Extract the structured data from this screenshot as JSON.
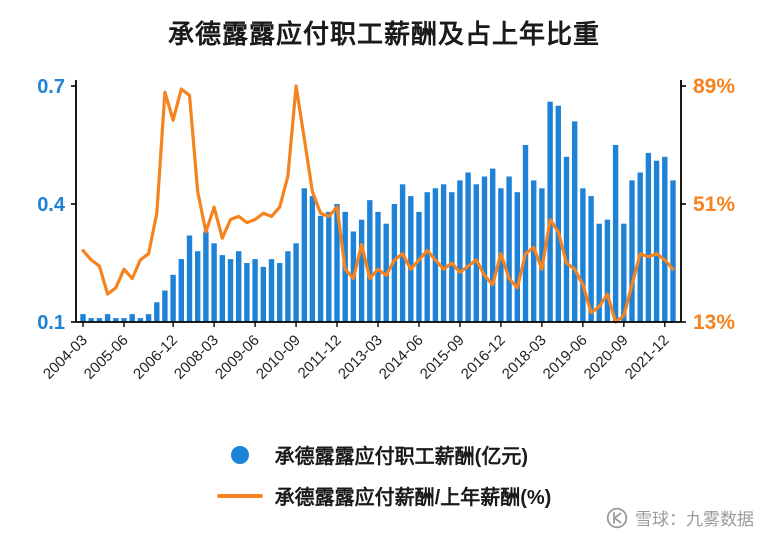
{
  "chart_data": {
    "type": "combo",
    "title": "承德露露应付职工薪酬及占上年比重",
    "x": [
      "2004-03",
      "2004-06",
      "2004-09",
      "2004-12",
      "2005-03",
      "2005-06",
      "2005-09",
      "2005-12",
      "2006-03",
      "2006-06",
      "2006-09",
      "2006-12",
      "2007-03",
      "2007-06",
      "2007-09",
      "2007-12",
      "2008-03",
      "2008-06",
      "2008-09",
      "2008-12",
      "2009-03",
      "2009-06",
      "2009-09",
      "2009-12",
      "2010-03",
      "2010-06",
      "2010-09",
      "2010-12",
      "2011-03",
      "2011-06",
      "2011-09",
      "2011-12",
      "2012-03",
      "2012-06",
      "2012-09",
      "2012-12",
      "2013-03",
      "2013-06",
      "2013-09",
      "2013-12",
      "2014-03",
      "2014-06",
      "2014-09",
      "2014-12",
      "2015-03",
      "2015-06",
      "2015-09",
      "2015-12",
      "2016-03",
      "2016-06",
      "2016-09",
      "2016-12",
      "2017-03",
      "2017-06",
      "2017-09",
      "2017-12",
      "2018-03",
      "2018-06",
      "2018-09",
      "2018-12",
      "2019-03",
      "2019-06",
      "2019-09",
      "2019-12",
      "2020-03",
      "2020-06",
      "2020-09",
      "2020-12",
      "2021-03",
      "2021-06",
      "2021-09",
      "2021-12",
      "2022-03"
    ],
    "x_ticks": [
      "2004-03",
      "2005-06",
      "2006-12",
      "2008-03",
      "2009-06",
      "2010-09",
      "2011-12",
      "2013-03",
      "2014-06",
      "2015-09",
      "2016-12",
      "2018-03",
      "2019-06",
      "2020-09",
      "2021-12"
    ],
    "series": [
      {
        "name": "承德露露应付职工薪酬(亿元)",
        "type": "bar",
        "axis": "left",
        "values": [
          0.12,
          0.11,
          0.11,
          0.12,
          0.11,
          0.11,
          0.12,
          0.11,
          0.12,
          0.15,
          0.18,
          0.22,
          0.26,
          0.32,
          0.28,
          0.33,
          0.3,
          0.27,
          0.26,
          0.28,
          0.25,
          0.26,
          0.24,
          0.26,
          0.25,
          0.28,
          0.3,
          0.44,
          0.42,
          0.37,
          0.38,
          0.4,
          0.38,
          0.33,
          0.36,
          0.41,
          0.38,
          0.35,
          0.4,
          0.45,
          0.42,
          0.38,
          0.43,
          0.44,
          0.45,
          0.43,
          0.46,
          0.48,
          0.45,
          0.47,
          0.49,
          0.44,
          0.47,
          0.43,
          0.55,
          0.46,
          0.44,
          0.66,
          0.65,
          0.52,
          0.61,
          0.44,
          0.42,
          0.35,
          0.36,
          0.55,
          0.35,
          0.46,
          0.48,
          0.53,
          0.51,
          0.52,
          0.46
        ]
      },
      {
        "name": "承德露露应付薪酬/上年薪酬(%)",
        "type": "line",
        "axis": "right",
        "values": [
          36,
          33,
          31,
          22,
          24,
          30,
          27,
          33,
          35,
          48,
          87,
          78,
          88,
          86,
          55,
          42,
          50,
          40,
          46,
          47,
          45,
          46,
          48,
          47,
          50,
          60,
          89,
          72,
          55,
          48,
          47,
          50,
          30,
          27,
          38,
          27,
          30,
          28,
          33,
          35,
          30,
          33,
          36,
          33,
          30,
          32,
          29,
          31,
          33,
          28,
          25,
          35,
          27,
          24,
          35,
          37,
          30,
          46,
          42,
          32,
          30,
          25,
          16,
          18,
          22,
          13,
          15,
          25,
          35,
          34,
          35,
          33,
          30
        ]
      }
    ],
    "ylim": [
      0.1,
      0.7
    ],
    "y2lim": [
      13,
      89
    ],
    "axes": {
      "left": [
        {
          "label": "0.7",
          "value": 0.7
        },
        {
          "label": "0.4",
          "value": 0.4
        },
        {
          "label": "0.1",
          "value": 0.1
        }
      ],
      "right": [
        {
          "label": "89%",
          "value": 89
        },
        {
          "label": "51%",
          "value": 51
        },
        {
          "label": "13%",
          "value": 13
        }
      ]
    },
    "colors": {
      "bar": "#1e82d6",
      "line": "#f5831f",
      "left_axis": "#1e82d6",
      "right_axis": "#f5831f",
      "axis_line": "#000000",
      "tick_label": "#222222"
    },
    "grid": false,
    "legend_position": "bottom"
  },
  "legend": {
    "items": [
      {
        "label": "承德露露应付职工薪酬(亿元)",
        "marker": "circle"
      },
      {
        "label": "承德露露应付薪酬/上年薪酬(%)",
        "marker": "line"
      }
    ]
  },
  "watermark": {
    "text": "雪球：九雾数据"
  }
}
